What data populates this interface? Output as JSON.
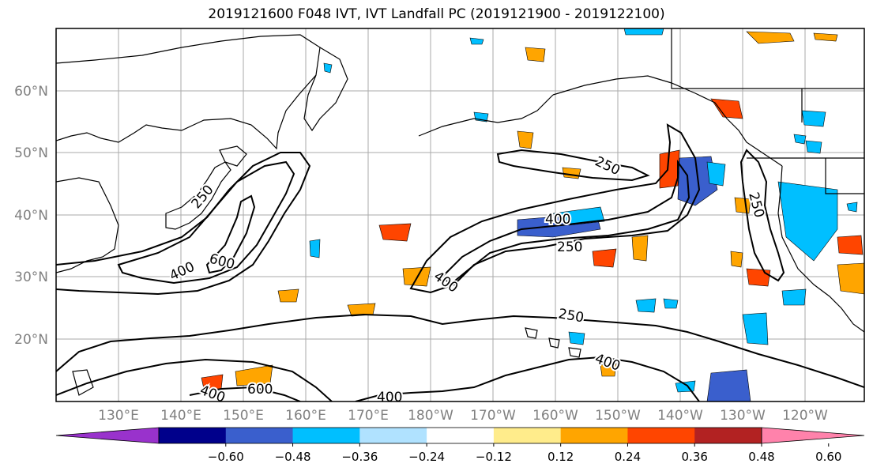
{
  "title": "2019121600 F048 IVT, IVT Landfall PC (2019121900 - 2019122100)",
  "map": {
    "lat_labels": [
      "60°N",
      "50°N",
      "40°N",
      "30°N",
      "20°N"
    ],
    "lon_labels": [
      "130°E",
      "140°E",
      "150°E",
      "160°E",
      "170°E",
      "180°W",
      "170°W",
      "160°W",
      "150°W",
      "140°W",
      "130°W",
      "120°W"
    ],
    "contour_labels": [
      {
        "text": "250"
      },
      {
        "text": "600"
      },
      {
        "text": "400"
      },
      {
        "text": "250"
      },
      {
        "text": "400"
      },
      {
        "text": "250"
      },
      {
        "text": "400"
      },
      {
        "text": "250"
      },
      {
        "text": "250"
      },
      {
        "text": "400"
      },
      {
        "text": "400"
      },
      {
        "text": "600"
      },
      {
        "text": "400"
      }
    ]
  },
  "colorbar": {
    "ticks": [
      "−0.60",
      "−0.48",
      "−0.36",
      "−0.24",
      "−0.12",
      "0.12",
      "0.24",
      "0.36",
      "0.48",
      "0.60"
    ],
    "colors": [
      "#9932CC",
      "#00008B",
      "#3A5FCD",
      "#00BFFF",
      "#B0E2FF",
      "#FFFFFF",
      "#FFEC8B",
      "#FFA500",
      "#FF4500",
      "#B22222",
      "#FF82AB"
    ]
  }
}
